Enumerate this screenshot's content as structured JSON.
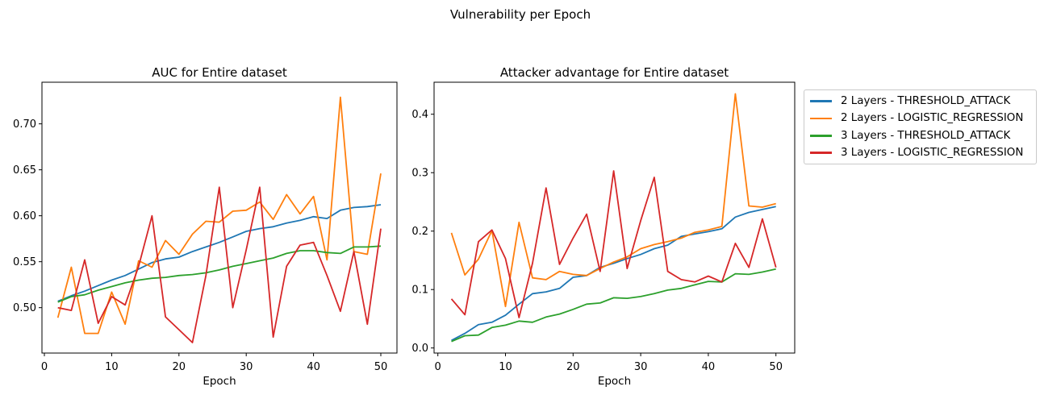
{
  "figure": {
    "title": "Vulnerability per Epoch"
  },
  "legend": {
    "items": [
      {
        "label": "2 Layers - THRESHOLD_ATTACK",
        "color": "#1f77b4"
      },
      {
        "label": "2 Layers - LOGISTIC_REGRESSION",
        "color": "#ff7f0e"
      },
      {
        "label": "3 Layers - THRESHOLD_ATTACK",
        "color": "#2ca02c"
      },
      {
        "label": "3 Layers - LOGISTIC_REGRESSION",
        "color": "#d62728"
      }
    ],
    "position": "outside-right"
  },
  "chart_data": [
    {
      "type": "line",
      "title": "AUC for Entire dataset",
      "xlabel": "Epoch",
      "grid": false,
      "x": [
        2,
        4,
        6,
        8,
        10,
        12,
        14,
        16,
        18,
        20,
        22,
        24,
        26,
        28,
        30,
        32,
        34,
        36,
        38,
        40,
        42,
        44,
        46,
        48,
        50
      ],
      "xticks": [
        0,
        10,
        20,
        30,
        40,
        50
      ],
      "ytick_values": [
        0.5,
        0.55,
        0.6,
        0.65,
        0.7
      ],
      "ytick_labels": [
        "0.50",
        "0.55",
        "0.60",
        "0.65",
        "0.70"
      ],
      "xlim": [
        -0.36,
        52.4
      ],
      "ylim": [
        0.4506,
        0.7453
      ],
      "series": [
        {
          "name": "2 Layers - THRESHOLD_ATTACK",
          "color": "#1f77b4",
          "values": [
            0.507,
            0.513,
            0.518,
            0.524,
            0.53,
            0.535,
            0.542,
            0.549,
            0.553,
            0.555,
            0.561,
            0.566,
            0.571,
            0.577,
            0.583,
            0.586,
            0.588,
            0.592,
            0.595,
            0.599,
            0.597,
            0.606,
            0.609,
            0.61,
            0.612
          ]
        },
        {
          "name": "2 Layers - LOGISTIC_REGRESSION",
          "color": "#ff7f0e",
          "values": [
            0.489,
            0.544,
            0.472,
            0.472,
            0.517,
            0.482,
            0.551,
            0.544,
            0.573,
            0.558,
            0.58,
            0.594,
            0.593,
            0.605,
            0.606,
            0.615,
            0.596,
            0.623,
            0.602,
            0.621,
            0.552,
            0.729,
            0.561,
            0.558,
            0.646
          ]
        },
        {
          "name": "3 Layers - THRESHOLD_ATTACK",
          "color": "#2ca02c",
          "values": [
            0.506,
            0.512,
            0.514,
            0.519,
            0.523,
            0.527,
            0.53,
            0.532,
            0.533,
            0.535,
            0.536,
            0.538,
            0.541,
            0.545,
            0.548,
            0.551,
            0.554,
            0.559,
            0.562,
            0.562,
            0.56,
            0.559,
            0.566,
            0.566,
            0.567
          ]
        },
        {
          "name": "3 Layers - LOGISTIC_REGRESSION",
          "color": "#d62728",
          "values": [
            0.5,
            0.497,
            0.552,
            0.483,
            0.512,
            0.503,
            0.545,
            0.6,
            0.49,
            0.476,
            0.462,
            0.535,
            0.631,
            0.5,
            0.563,
            0.631,
            0.468,
            0.545,
            0.568,
            0.571,
            0.535,
            0.496,
            0.561,
            0.482,
            0.586
          ]
        }
      ]
    },
    {
      "type": "line",
      "title": "Attacker advantage for Entire dataset",
      "xlabel": "Epoch",
      "grid": false,
      "x": [
        2,
        4,
        6,
        8,
        10,
        12,
        14,
        16,
        18,
        20,
        22,
        24,
        26,
        28,
        30,
        32,
        34,
        36,
        38,
        40,
        42,
        44,
        46,
        48,
        50
      ],
      "xticks": [
        0,
        10,
        20,
        30,
        40,
        50
      ],
      "ytick_values": [
        0.0,
        0.1,
        0.2,
        0.3,
        0.4
      ],
      "ytick_labels": [
        "0.0",
        "0.1",
        "0.2",
        "0.3",
        "0.4"
      ],
      "xlim": [
        -0.56,
        52.78
      ],
      "ylim": [
        -0.0087,
        0.4548
      ],
      "series": [
        {
          "name": "2 Layers - THRESHOLD_ATTACK",
          "color": "#1f77b4",
          "values": [
            0.013,
            0.025,
            0.04,
            0.044,
            0.056,
            0.075,
            0.093,
            0.096,
            0.102,
            0.121,
            0.124,
            0.138,
            0.145,
            0.153,
            0.16,
            0.17,
            0.176,
            0.191,
            0.195,
            0.199,
            0.204,
            0.224,
            0.232,
            0.237,
            0.242
          ]
        },
        {
          "name": "2 Layers - LOGISTIC_REGRESSION",
          "color": "#ff7f0e",
          "values": [
            0.197,
            0.125,
            0.152,
            0.201,
            0.071,
            0.215,
            0.12,
            0.117,
            0.131,
            0.126,
            0.124,
            0.136,
            0.147,
            0.156,
            0.17,
            0.177,
            0.182,
            0.188,
            0.198,
            0.202,
            0.208,
            0.435,
            0.243,
            0.241,
            0.247
          ]
        },
        {
          "name": "3 Layers - THRESHOLD_ATTACK",
          "color": "#2ca02c",
          "values": [
            0.011,
            0.021,
            0.022,
            0.035,
            0.039,
            0.046,
            0.044,
            0.053,
            0.058,
            0.066,
            0.075,
            0.077,
            0.086,
            0.085,
            0.088,
            0.093,
            0.099,
            0.102,
            0.108,
            0.114,
            0.113,
            0.127,
            0.126,
            0.13,
            0.135
          ]
        },
        {
          "name": "3 Layers - LOGISTIC_REGRESSION",
          "color": "#d62728",
          "values": [
            0.084,
            0.057,
            0.182,
            0.202,
            0.153,
            0.052,
            0.145,
            0.274,
            0.143,
            0.188,
            0.229,
            0.131,
            0.303,
            0.136,
            0.218,
            0.292,
            0.131,
            0.117,
            0.113,
            0.123,
            0.113,
            0.179,
            0.138,
            0.221,
            0.138
          ]
        }
      ]
    }
  ]
}
